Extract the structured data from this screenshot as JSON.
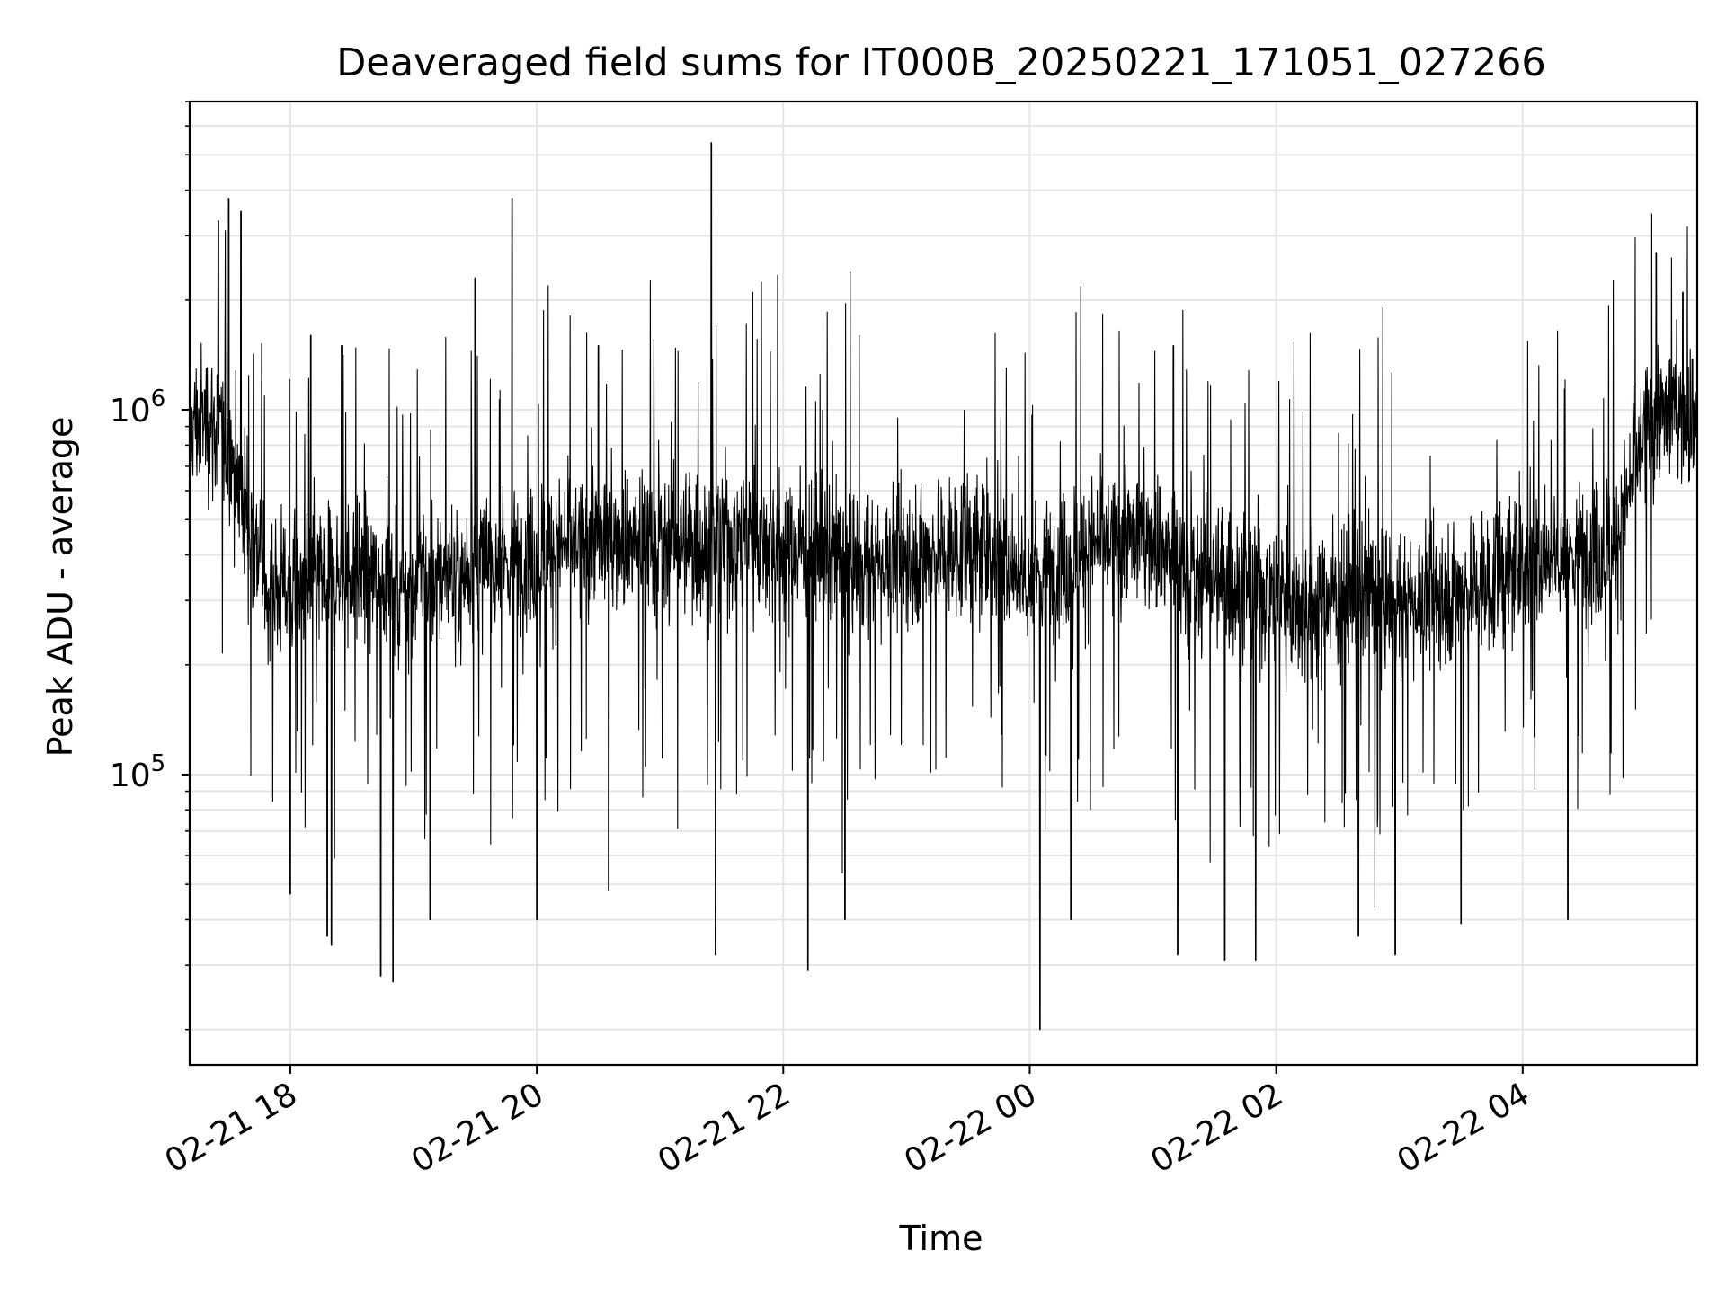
{
  "chart_data": {
    "type": "line",
    "title": "Deaveraged field sums for IT000B_20250221_171051_027266",
    "xlabel": "Time",
    "ylabel": "Peak ADU - average",
    "y_scale": "log",
    "ylim": [
      16000,
      7000000
    ],
    "xlim": [
      "2025-02-21 17:11",
      "2025-02-22 05:25"
    ],
    "x_ticks": [
      {
        "label": "02-21 18",
        "time": "2025-02-21 18:00"
      },
      {
        "label": "02-21 20",
        "time": "2025-02-21 20:00"
      },
      {
        "label": "02-21 22",
        "time": "2025-02-21 22:00"
      },
      {
        "label": "02-22 00",
        "time": "2025-02-22 00:00"
      },
      {
        "label": "02-22 02",
        "time": "2025-02-22 02:00"
      },
      {
        "label": "02-22 04",
        "time": "2025-02-22 04:00"
      }
    ],
    "y_ticks": [
      {
        "base": "10",
        "exp": "5",
        "value": 100000
      },
      {
        "base": "10",
        "exp": "6",
        "value": 1000000
      }
    ],
    "grid": true,
    "line_color": "#000000",
    "grid_color": "#e5e5e5",
    "series": [
      {
        "x": [
          "2025-02-21 17:11",
          "2025-02-21 17:20",
          "2025-02-21 17:30",
          "2025-02-21 17:40",
          "2025-02-21 17:50",
          "2025-02-21 18:00",
          "2025-02-21 18:15",
          "2025-02-21 18:30",
          "2025-02-21 18:45",
          "2025-02-21 19:00",
          "2025-02-21 19:15",
          "2025-02-21 19:30",
          "2025-02-21 19:45",
          "2025-02-21 20:00",
          "2025-02-21 20:15",
          "2025-02-21 20:30",
          "2025-02-21 20:45",
          "2025-02-21 21:00",
          "2025-02-21 21:15",
          "2025-02-21 21:30",
          "2025-02-21 21:45",
          "2025-02-21 22:00",
          "2025-02-21 22:15",
          "2025-02-21 22:30",
          "2025-02-21 22:45",
          "2025-02-21 23:00",
          "2025-02-21 23:15",
          "2025-02-21 23:30",
          "2025-02-21 23:45",
          "2025-02-22 00:00",
          "2025-02-22 00:15",
          "2025-02-22 00:30",
          "2025-02-22 00:45",
          "2025-02-22 01:00",
          "2025-02-22 01:15",
          "2025-02-22 01:30",
          "2025-02-22 01:45",
          "2025-02-22 02:00",
          "2025-02-22 02:15",
          "2025-02-22 02:30",
          "2025-02-22 02:45",
          "2025-02-22 03:00",
          "2025-02-22 03:15",
          "2025-02-22 03:30",
          "2025-02-22 03:45",
          "2025-02-22 04:00",
          "2025-02-22 04:15",
          "2025-02-22 04:30",
          "2025-02-22 04:45",
          "2025-02-22 05:00",
          "2025-02-22 05:15",
          "2025-02-22 05:25"
        ],
        "y": [
          900000,
          950000,
          800000,
          500000,
          320000,
          330000,
          340000,
          360000,
          350000,
          340000,
          350000,
          370000,
          380000,
          400000,
          420000,
          440000,
          450000,
          430000,
          420000,
          440000,
          460000,
          430000,
          410000,
          390000,
          380000,
          400000,
          410000,
          420000,
          400000,
          340000,
          380000,
          420000,
          440000,
          450000,
          360000,
          340000,
          330000,
          320000,
          300000,
          310000,
          320000,
          300000,
          310000,
          320000,
          340000,
          380000,
          400000,
          410000,
          420000,
          900000,
          1000000,
          950000
        ]
      }
    ],
    "spikes_high": [
      {
        "x": "2025-02-21 17:30",
        "y": 3800000
      },
      {
        "x": "2025-02-21 17:36",
        "y": 3500000
      },
      {
        "x": "2025-02-21 17:25",
        "y": 3300000
      },
      {
        "x": "2025-02-21 18:10",
        "y": 1600000
      },
      {
        "x": "2025-02-21 18:25",
        "y": 1500000
      },
      {
        "x": "2025-02-21 19:30",
        "y": 2300000
      },
      {
        "x": "2025-02-21 19:48",
        "y": 3800000
      },
      {
        "x": "2025-02-21 20:30",
        "y": 1500000
      },
      {
        "x": "2025-02-21 21:25",
        "y": 5400000
      },
      {
        "x": "2025-02-21 21:45",
        "y": 2100000
      },
      {
        "x": "2025-02-22 01:10",
        "y": 1500000
      },
      {
        "x": "2025-02-22 05:05",
        "y": 2700000
      },
      {
        "x": "2025-02-22 05:18",
        "y": 2100000
      }
    ],
    "spikes_low": [
      {
        "x": "2025-02-21 18:00",
        "y": 47000
      },
      {
        "x": "2025-02-21 18:18",
        "y": 36000
      },
      {
        "x": "2025-02-21 18:20",
        "y": 34000
      },
      {
        "x": "2025-02-21 18:44",
        "y": 28000
      },
      {
        "x": "2025-02-21 18:50",
        "y": 27000
      },
      {
        "x": "2025-02-21 19:08",
        "y": 40000
      },
      {
        "x": "2025-02-21 20:00",
        "y": 40000
      },
      {
        "x": "2025-02-21 20:35",
        "y": 48000
      },
      {
        "x": "2025-02-21 21:27",
        "y": 32000
      },
      {
        "x": "2025-02-21 22:12",
        "y": 29000
      },
      {
        "x": "2025-02-21 22:30",
        "y": 40000
      },
      {
        "x": "2025-02-22 00:05",
        "y": 20000
      },
      {
        "x": "2025-02-22 00:20",
        "y": 40000
      },
      {
        "x": "2025-02-22 01:12",
        "y": 32000
      },
      {
        "x": "2025-02-22 01:35",
        "y": 31000
      },
      {
        "x": "2025-02-22 01:50",
        "y": 31000
      },
      {
        "x": "2025-02-22 02:40",
        "y": 36000
      },
      {
        "x": "2025-02-22 02:58",
        "y": 32000
      },
      {
        "x": "2025-02-22 03:30",
        "y": 39000
      },
      {
        "x": "2025-02-22 04:22",
        "y": 40000
      }
    ]
  }
}
